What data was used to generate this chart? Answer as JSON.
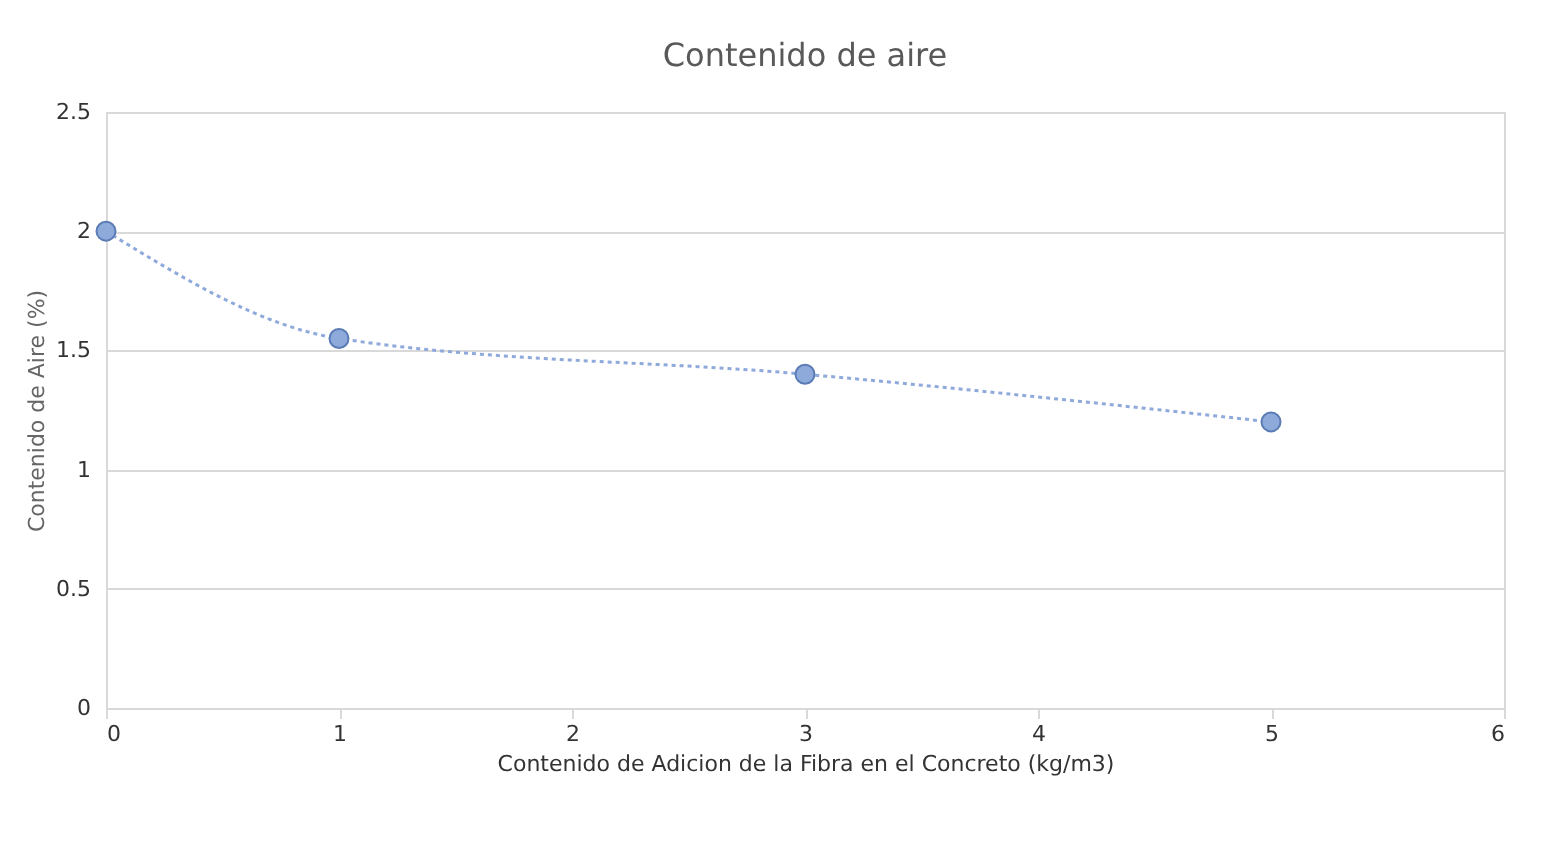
{
  "chart_data": {
    "type": "line",
    "title": "Contenido de aire",
    "xlabel": "Contenido de Adicion de la Fibra en el Concreto (kg/m3)",
    "ylabel": "Contenido de Aire (%)",
    "x": [
      0,
      1,
      3,
      5
    ],
    "series": [
      {
        "color": "#8eaadb",
        "values": [
          2,
          1.55,
          1.4,
          1.2
        ]
      }
    ],
    "xlim": [
      0,
      6
    ],
    "xticks": [
      0,
      1,
      2,
      3,
      4,
      5,
      6
    ],
    "ylim": [
      0,
      2.5
    ],
    "yticks": [
      0,
      0.5,
      1,
      1.5,
      2,
      2.5
    ],
    "grid": "y",
    "marker": "circle",
    "line_style": "dotted"
  }
}
